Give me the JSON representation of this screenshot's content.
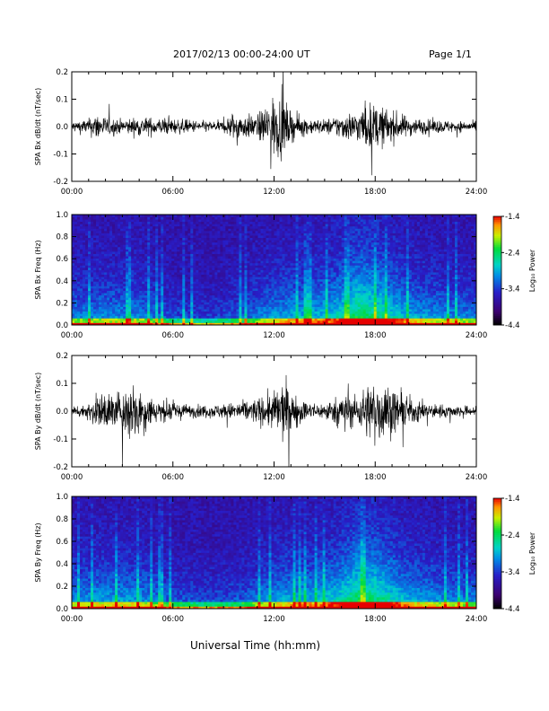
{
  "header": {
    "title": "2017/02/13  00:00-24:00 UT",
    "page": "Page 1/1"
  },
  "xlabel": "Universal Time (hh:mm)",
  "chart_data": [
    {
      "type": "line",
      "ylabel": "SPA Bx dB/dt (nT/sec)",
      "xlim": [
        0,
        24
      ],
      "ylim": [
        -0.2,
        0.2
      ],
      "x_ticks": [
        "00:00",
        "06:00",
        "12:00",
        "18:00",
        "24:00"
      ],
      "y_ticks": [
        "0.2",
        "0.1",
        "0.0",
        "-0.1",
        "-0.2"
      ],
      "y_tick_values": [
        0.2,
        0.1,
        0.0,
        -0.1,
        -0.2
      ],
      "envelope_hours": [
        0,
        1,
        1.5,
        2,
        3,
        4,
        5,
        6,
        7,
        8,
        9,
        9.5,
        10,
        11,
        11.5,
        12,
        12.5,
        13,
        14,
        15,
        15.5,
        16,
        17,
        17.5,
        18,
        19,
        20,
        21,
        22,
        23,
        24
      ],
      "envelope_amplitude": [
        0.035,
        0.05,
        0.09,
        0.06,
        0.045,
        0.06,
        0.055,
        0.05,
        0.04,
        0.035,
        0.035,
        0.09,
        0.08,
        0.07,
        0.14,
        0.2,
        0.19,
        0.09,
        0.05,
        0.045,
        0.06,
        0.08,
        0.1,
        0.15,
        0.14,
        0.1,
        0.06,
        0.045,
        0.04,
        0.035,
        0.03
      ]
    },
    {
      "type": "heatmap",
      "ylabel": "SPA Bx Freq (Hz)",
      "xlim": [
        0,
        24
      ],
      "ylim": [
        0.0,
        1.0
      ],
      "x_ticks": [
        "00:00",
        "06:00",
        "12:00",
        "18:00",
        "24:00"
      ],
      "y_ticks": [
        "1.0",
        "0.8",
        "0.6",
        "0.4",
        "0.2",
        "0.0"
      ],
      "y_tick_values": [
        1.0,
        0.8,
        0.6,
        0.4,
        0.2,
        0.0
      ],
      "colorbar": {
        "label": "Log₁₀ Power",
        "range": [
          -4.4,
          -1.4
        ],
        "ticks": [
          "-1.4",
          "-2.4",
          "-3.4",
          "-4.4"
        ],
        "tick_values": [
          -1.4,
          -2.4,
          -3.4,
          -4.4
        ]
      },
      "activity_hours": [
        0,
        2,
        4,
        6,
        8,
        10,
        11,
        12,
        13,
        14,
        15,
        16,
        17,
        18,
        19,
        20,
        22,
        24
      ],
      "activity_level": [
        0.45,
        0.5,
        0.5,
        0.3,
        0.25,
        0.35,
        0.45,
        0.55,
        0.6,
        0.6,
        0.65,
        0.75,
        0.95,
        0.9,
        0.75,
        0.6,
        0.5,
        0.45
      ]
    },
    {
      "type": "line",
      "ylabel": "SPA By dB/dt (nT/sec)",
      "xlim": [
        0,
        24
      ],
      "ylim": [
        -0.2,
        0.2
      ],
      "x_ticks": [
        "00:00",
        "06:00",
        "12:00",
        "18:00",
        "24:00"
      ],
      "y_ticks": [
        "0.2",
        "0.1",
        "0.0",
        "-0.1",
        "-0.2"
      ],
      "y_tick_values": [
        0.2,
        0.1,
        0.0,
        -0.1,
        -0.2
      ],
      "envelope_hours": [
        0,
        1,
        1.5,
        2,
        3,
        3.5,
        4,
        5,
        6,
        7,
        8,
        9,
        10,
        11,
        12,
        12.5,
        13,
        14,
        15,
        16,
        16.5,
        17,
        17.5,
        18,
        18.5,
        19,
        20,
        21,
        22,
        23,
        24
      ],
      "envelope_amplitude": [
        0.03,
        0.05,
        0.1,
        0.12,
        0.12,
        0.2,
        0.16,
        0.07,
        0.06,
        0.04,
        0.04,
        0.045,
        0.06,
        0.08,
        0.12,
        0.2,
        0.12,
        0.05,
        0.05,
        0.1,
        0.11,
        0.09,
        0.17,
        0.2,
        0.19,
        0.14,
        0.09,
        0.05,
        0.04,
        0.035,
        0.03
      ]
    },
    {
      "type": "heatmap",
      "ylabel": "SPA By Freq (Hz)",
      "xlim": [
        0,
        24
      ],
      "ylim": [
        0.0,
        1.0
      ],
      "x_ticks": [
        "00:00",
        "06:00",
        "12:00",
        "18:00",
        "24:00"
      ],
      "y_ticks": [
        "1.0",
        "0.8",
        "0.6",
        "0.4",
        "0.2",
        "0.0"
      ],
      "y_tick_values": [
        1.0,
        0.8,
        0.6,
        0.4,
        0.2,
        0.0
      ],
      "colorbar": {
        "label": "Log₁₀ Power",
        "range": [
          -4.4,
          -1.4
        ],
        "ticks": [
          "-1.4",
          "-2.4",
          "-3.4",
          "-4.4"
        ],
        "tick_values": [
          -1.4,
          -2.4,
          -3.4,
          -4.4
        ]
      },
      "activity_hours": [
        0,
        2,
        4,
        6,
        8,
        10,
        11,
        12,
        13,
        14,
        15,
        16,
        17,
        18,
        19,
        20,
        22,
        24
      ],
      "activity_level": [
        0.5,
        0.55,
        0.55,
        0.35,
        0.3,
        0.35,
        0.45,
        0.55,
        0.6,
        0.6,
        0.65,
        0.75,
        0.95,
        0.9,
        0.75,
        0.6,
        0.5,
        0.45
      ]
    }
  ]
}
